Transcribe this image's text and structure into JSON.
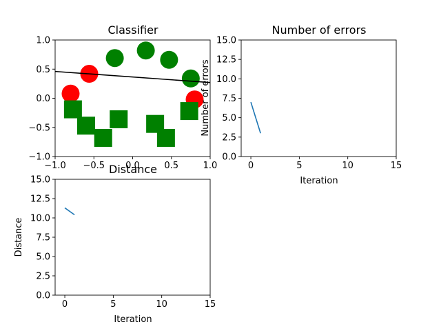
{
  "chart_data": [
    {
      "id": "classifier",
      "type": "scatter",
      "title": "Classifier",
      "xlabel": "",
      "ylabel": "",
      "xlim": [
        -1.0,
        1.0
      ],
      "ylim": [
        -1.0,
        1.0
      ],
      "xticks": [
        -1.0,
        -0.5,
        0.0,
        0.5,
        1.0
      ],
      "yticks": [
        -1.0,
        -0.5,
        0.0,
        0.5,
        1.0
      ],
      "xtick_labels": [
        "−1.0",
        "−0.5",
        "0.0",
        "0.5",
        "1.0"
      ],
      "ytick_labels": [
        "−1.0",
        "−0.5",
        "0.0",
        "0.5",
        "1.0"
      ],
      "grid": false,
      "series": [
        {
          "marker": "circle",
          "color": "#008000",
          "points": [
            [
              -0.23,
              0.69
            ],
            [
              0.17,
              0.82
            ],
            [
              0.47,
              0.66
            ],
            [
              0.75,
              0.34
            ]
          ]
        },
        {
          "marker": "circle",
          "color": "#ff0000",
          "points": [
            [
              -0.8,
              0.08
            ],
            [
              -0.56,
              0.42
            ],
            [
              0.8,
              -0.02
            ]
          ]
        },
        {
          "marker": "square",
          "color": "#008000",
          "points": [
            [
              -0.77,
              -0.19
            ],
            [
              -0.6,
              -0.47
            ],
            [
              -0.38,
              -0.68
            ],
            [
              -0.18,
              -0.36
            ],
            [
              0.29,
              -0.44
            ],
            [
              0.43,
              -0.68
            ],
            [
              0.73,
              -0.22
            ]
          ]
        }
      ],
      "line": {
        "color": "#000000",
        "x": [
          -1.0,
          1.0
        ],
        "y": [
          0.46,
          0.27
        ]
      }
    },
    {
      "id": "errors",
      "type": "line",
      "title": "Number of errors",
      "xlabel": "Iteration",
      "ylabel": "Number of errors",
      "xlim": [
        -1,
        15
      ],
      "ylim": [
        0.0,
        15.0
      ],
      "xticks": [
        0,
        5,
        10,
        15
      ],
      "yticks": [
        0.0,
        2.5,
        5.0,
        7.5,
        10.0,
        12.5,
        15.0
      ],
      "xtick_labels": [
        "0",
        "5",
        "10",
        "15"
      ],
      "ytick_labels": [
        "0.0",
        "2.5",
        "5.0",
        "7.5",
        "10.0",
        "12.5",
        "15.0"
      ],
      "grid": false,
      "series": [
        {
          "color": "#1f77b4",
          "x": [
            0,
            1
          ],
          "y": [
            7.0,
            3.0
          ]
        }
      ]
    },
    {
      "id": "distance",
      "type": "line",
      "title": "Distance",
      "xlabel": "Iteration",
      "ylabel": "Distance",
      "xlim": [
        -1,
        15
      ],
      "ylim": [
        0.0,
        15.0
      ],
      "xticks": [
        0,
        5,
        10,
        15
      ],
      "yticks": [
        0.0,
        2.5,
        5.0,
        7.5,
        10.0,
        12.5,
        15.0
      ],
      "xtick_labels": [
        "0",
        "5",
        "10",
        "15"
      ],
      "ytick_labels": [
        "0.0",
        "2.5",
        "5.0",
        "7.5",
        "10.0",
        "12.5",
        "15.0"
      ],
      "grid": false,
      "series": [
        {
          "color": "#1f77b4",
          "x": [
            0,
            1
          ],
          "y": [
            11.3,
            10.4
          ]
        }
      ]
    }
  ]
}
